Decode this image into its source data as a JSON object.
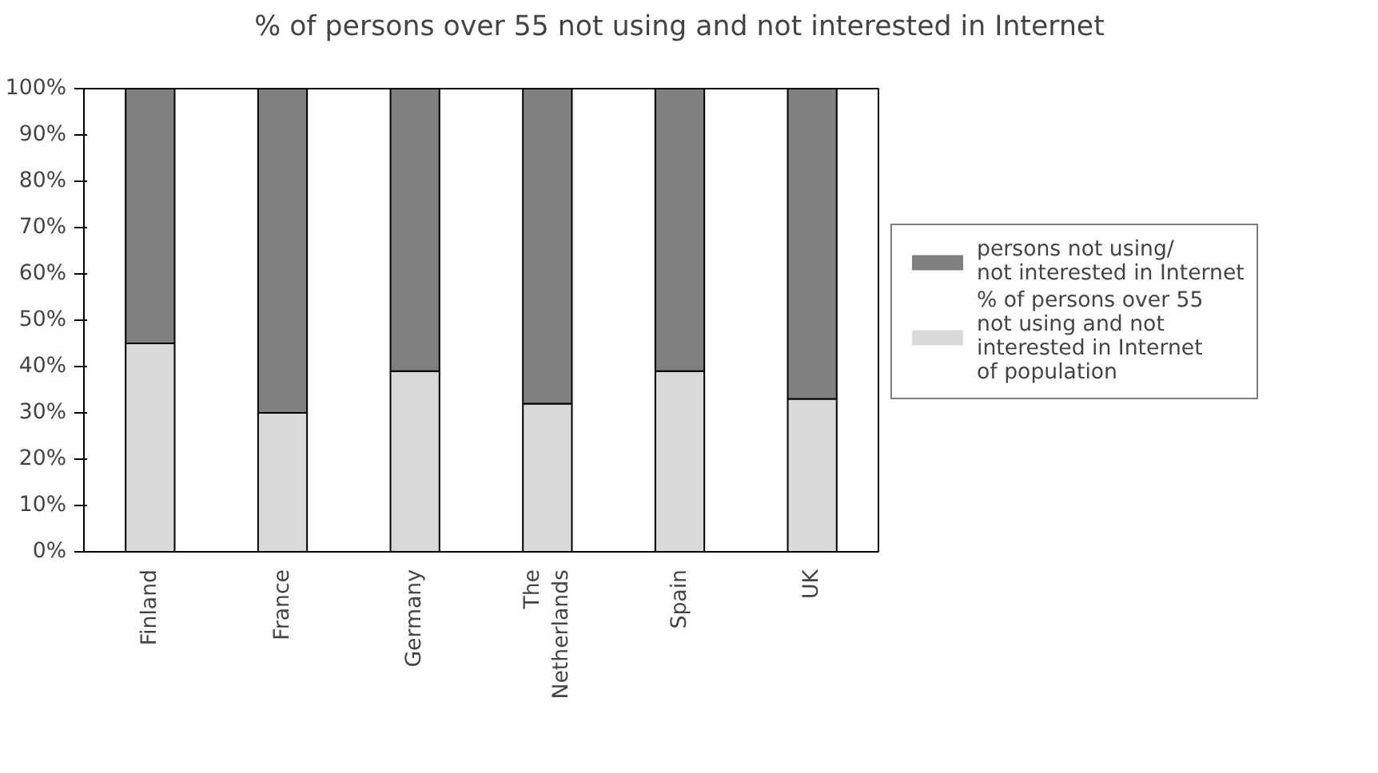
{
  "chart_data": {
    "type": "bar",
    "stacked": true,
    "title": "% of persons over 55 not using and not interested in Internet",
    "categories": [
      "Finland",
      "France",
      "Germany",
      "The Netherlands",
      "Spain",
      "UK"
    ],
    "series": [
      {
        "name": "% of persons over 55\nnot using and not\ninterested in Internet\nof population",
        "color": "#d9d9d9",
        "values": [
          45,
          30,
          39,
          32,
          39,
          33
        ]
      },
      {
        "name": "persons not using/\nnot interested in Internet",
        "color": "#808080",
        "values": [
          55,
          70,
          61,
          68,
          61,
          67
        ]
      }
    ],
    "ylim": [
      0,
      100
    ],
    "yticks": [
      {
        "value": 0,
        "label": "0%"
      },
      {
        "value": 10,
        "label": "10%"
      },
      {
        "value": 20,
        "label": "20%"
      },
      {
        "value": 30,
        "label": "30%"
      },
      {
        "value": 40,
        "label": "40%"
      },
      {
        "value": 50,
        "label": "50%"
      },
      {
        "value": 60,
        "label": "60%"
      },
      {
        "value": 70,
        "label": "70%"
      },
      {
        "value": 80,
        "label": "80%"
      },
      {
        "value": 90,
        "label": "90%"
      },
      {
        "value": 100,
        "label": "100%"
      }
    ],
    "grid": false,
    "legend": "right"
  }
}
